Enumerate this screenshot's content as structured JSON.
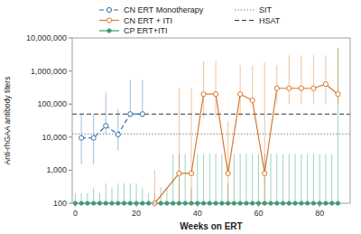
{
  "chart_data": {
    "type": "line",
    "x_label": "Weeks on ERT",
    "y_label": "Anti-rhGAA antibody titers",
    "log": "y",
    "grid": false,
    "legend": "top",
    "xlim": [
      -1,
      90
    ],
    "xticks": [
      0,
      20,
      40,
      60,
      80
    ],
    "ylim": [
      100,
      10000000
    ],
    "yticks": [
      100,
      {
        "value": 1000,
        "label": "1,000"
      },
      {
        "value": 10000,
        "label": "10,000"
      },
      {
        "value": 100000,
        "label": "100,000"
      },
      {
        "value": 1000000,
        "label": "1,000,000"
      },
      {
        "value": 10000000,
        "label": "10,000,000"
      }
    ],
    "series": [
      {
        "name": "CN ERT Monotherapy",
        "marker": "open-circle",
        "line_style": "dashed",
        "x": [
          2,
          6,
          10,
          14,
          18,
          22
        ],
        "values": [
          9500,
          9500,
          22000,
          12000,
          50000,
          50000
        ],
        "error_low": [
          8000,
          8000,
          10000,
          8000,
          10000,
          10000
        ],
        "error_high": [
          40000,
          40000,
          200000,
          60000,
          500000,
          500000
        ]
      },
      {
        "name": "CN ERT + ITI",
        "marker": "open-circle",
        "line_style": "solid",
        "x": [
          26,
          34,
          38,
          42,
          46,
          50,
          54,
          58,
          62,
          66,
          70,
          74,
          78,
          82,
          86
        ],
        "values": [
          100,
          800,
          800,
          200000,
          200000,
          800,
          200000,
          130000,
          800,
          300000,
          300000,
          300000,
          300000,
          400000,
          200000
        ],
        "error_low": [
          0,
          700,
          700,
          160000,
          160000,
          700,
          160000,
          29000,
          700,
          200000,
          200000,
          200000,
          200000,
          300000,
          100000
        ],
        "error_high": [
          900,
          299200,
          299200,
          1800000,
          1800000,
          29200,
          1300000,
          1370000,
          1799200,
          1200000,
          2700000,
          2700000,
          2700000,
          2600000,
          4800000
        ]
      },
      {
        "name": "CP ERT+ITI",
        "marker": "circle",
        "line_style": "solid",
        "x": [
          0,
          2,
          4,
          6,
          8,
          10,
          12,
          14,
          16,
          18,
          20,
          22,
          24,
          26,
          28,
          30,
          32,
          34,
          36,
          38,
          40,
          42,
          44,
          46,
          48,
          50,
          52,
          54,
          56,
          58,
          60,
          62,
          64,
          66,
          68,
          70,
          72,
          74,
          76,
          78,
          80,
          82,
          84,
          86
        ],
        "values": [
          100,
          100,
          100,
          100,
          100,
          100,
          100,
          100,
          100,
          100,
          100,
          100,
          100,
          100,
          100,
          100,
          100,
          100,
          100,
          100,
          100,
          100,
          100,
          100,
          100,
          100,
          100,
          100,
          100,
          100,
          100,
          100,
          100,
          100,
          100,
          100,
          100,
          100,
          100,
          100,
          100,
          100,
          100,
          100
        ],
        "error_high": [
          100,
          100,
          100,
          200,
          100,
          300,
          200,
          300,
          300,
          300,
          300,
          200,
          100,
          100,
          200,
          200,
          3000,
          3000,
          3000,
          200,
          3000,
          3000,
          3000,
          3000,
          3000,
          300,
          3000,
          3000,
          3000,
          3000,
          3000,
          3000,
          3000,
          3000,
          3000,
          3000,
          3000,
          3000,
          3000,
          3000,
          3000,
          3000,
          3000,
          5000000
        ]
      },
      {
        "name": "SIT",
        "type": "hline",
        "line_style": "dotted",
        "values": [
          12500
        ]
      },
      {
        "name": "HSAT",
        "type": "hline",
        "line_style": "dashed",
        "values": [
          50000
        ]
      }
    ]
  }
}
